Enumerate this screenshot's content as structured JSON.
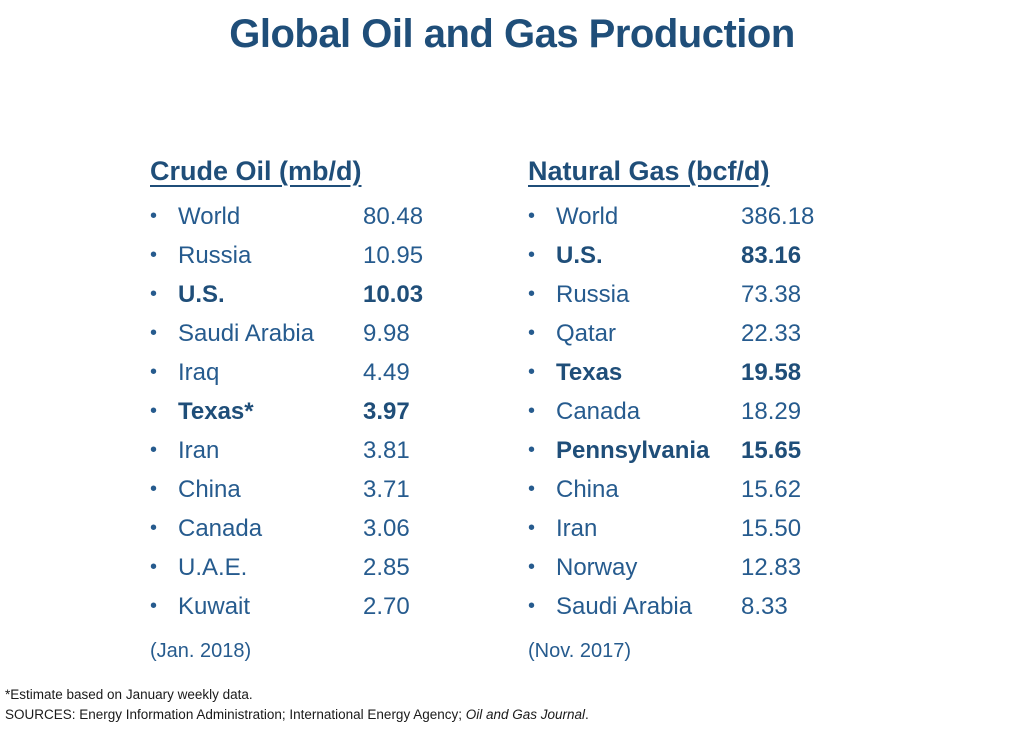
{
  "title": "Global Oil and Gas Production",
  "colors": {
    "title_blue": "#1F4E79",
    "body_blue": "#265B8E",
    "footer_text": "#1a1a1a",
    "background": "#ffffff"
  },
  "columns": [
    {
      "header": "Crude Oil (mb/d)",
      "date": "(Jan. 2018)",
      "rows": [
        {
          "label": "World",
          "value": "80.48",
          "bold": false
        },
        {
          "label": "Russia",
          "value": "10.95",
          "bold": false
        },
        {
          "label": "U.S.",
          "value": "10.03",
          "bold": true
        },
        {
          "label": "Saudi Arabia",
          "value": "9.98",
          "bold": false
        },
        {
          "label": "Iraq",
          "value": "4.49",
          "bold": false
        },
        {
          "label": "Texas*",
          "value": "3.97",
          "bold": true
        },
        {
          "label": "Iran",
          "value": "3.81",
          "bold": false
        },
        {
          "label": "China",
          "value": "3.71",
          "bold": false
        },
        {
          "label": "Canada",
          "value": "3.06",
          "bold": false
        },
        {
          "label": "U.A.E.",
          "value": "2.85",
          "bold": false
        },
        {
          "label": "Kuwait",
          "value": "2.70",
          "bold": false
        }
      ]
    },
    {
      "header": "Natural Gas (bcf/d)",
      "date": "(Nov. 2017)",
      "rows": [
        {
          "label": "World",
          "value": "386.18",
          "bold": false
        },
        {
          "label": "U.S.",
          "value": "83.16",
          "bold": true
        },
        {
          "label": "Russia",
          "value": "73.38",
          "bold": false
        },
        {
          "label": "Qatar",
          "value": "22.33",
          "bold": false
        },
        {
          "label": "Texas",
          "value": "19.58",
          "bold": true
        },
        {
          "label": "Canada",
          "value": "18.29",
          "bold": false
        },
        {
          "label": "Pennsylvania",
          "value": "15.65",
          "bold": true
        },
        {
          "label": "China",
          "value": "15.62",
          "bold": false
        },
        {
          "label": "Iran",
          "value": "15.50",
          "bold": false
        },
        {
          "label": "Norway",
          "value": "12.83",
          "bold": false
        },
        {
          "label": "Saudi Arabia",
          "value": "8.33",
          "bold": false
        }
      ]
    }
  ],
  "bullet_glyph": "•",
  "footnotes": {
    "line1": "*Estimate based on January weekly data.",
    "line2_prefix": "SOURCES: Energy Information Administration; International Energy Agency; ",
    "line2_italic": "Oil and Gas Journal",
    "line2_suffix": "."
  }
}
